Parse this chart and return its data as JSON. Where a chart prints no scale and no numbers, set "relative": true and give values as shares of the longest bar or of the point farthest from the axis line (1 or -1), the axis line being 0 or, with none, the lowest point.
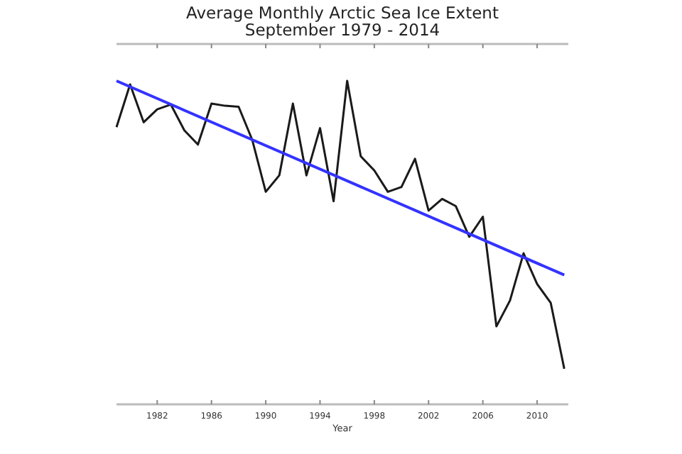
{
  "chart_data": {
    "type": "line",
    "title": "Average Monthly Arctic Sea Ice Extent",
    "subtitle": "September 1979 - 2014",
    "xlabel": "Year",
    "relative": true,
    "x": [
      1979,
      1980,
      1981,
      1982,
      1983,
      1984,
      1985,
      1986,
      1987,
      1988,
      1989,
      1990,
      1991,
      1992,
      1993,
      1994,
      1995,
      1996,
      1997,
      1998,
      1999,
      2000,
      2001,
      2002,
      2003,
      2004,
      2005,
      2006,
      2007,
      2008,
      2009,
      2010,
      2011,
      2012
    ],
    "xlim": [
      1979,
      2012.3
    ],
    "xticks": [
      1982,
      1986,
      1990,
      1994,
      1998,
      2002,
      2006,
      2010
    ],
    "series": [
      {
        "color": "#1a1a1a",
        "values": [
          0.857,
          0.989,
          0.872,
          0.912,
          0.927,
          0.847,
          0.803,
          0.93,
          0.923,
          0.92,
          0.818,
          0.657,
          0.708,
          0.93,
          0.708,
          0.854,
          0.628,
          1,
          0.767,
          0.723,
          0.657,
          0.672,
          0.759,
          0.599,
          0.635,
          0.613,
          0.518,
          0.58,
          0.241,
          0.321,
          0.467,
          0.372,
          0.314,
          0.11
        ]
      },
      {
        "type": "line",
        "color": "#3333ff",
        "x": [
          1979,
          2012
        ],
        "values": [
          1,
          0.4
        ]
      }
    ],
    "marker": "none",
    "line_style": "solid",
    "grid": false
  }
}
